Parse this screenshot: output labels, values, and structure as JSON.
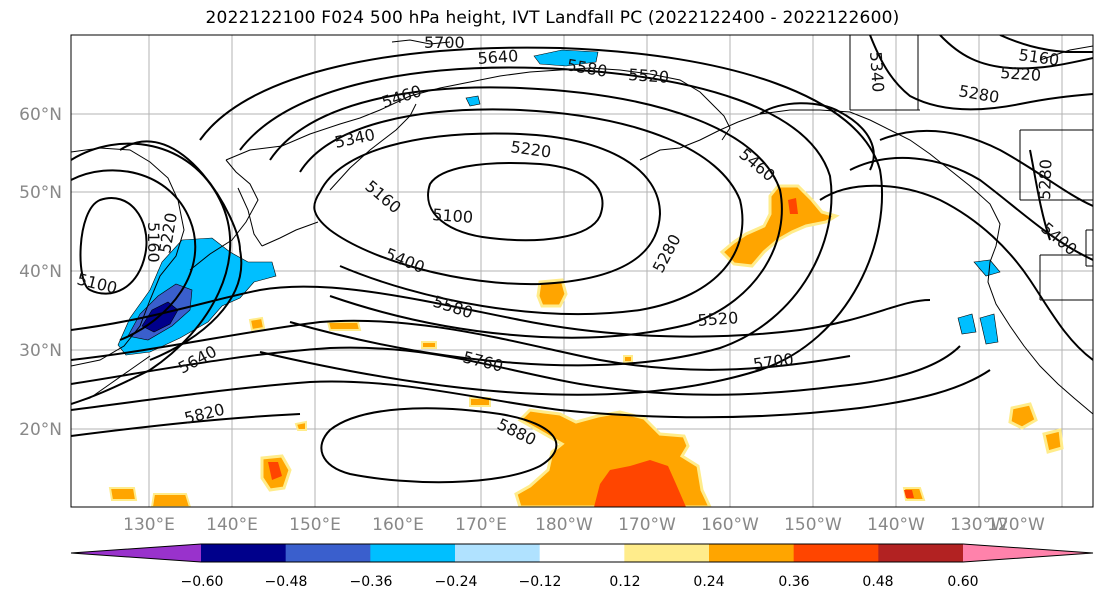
{
  "title": "2022122100 F024 500 hPa height, IVT Landfall PC (2022122400 - 2022122600)",
  "lat_ticks": [
    "60°N",
    "50°N",
    "40°N",
    "30°N",
    "20°N"
  ],
  "lon_ticks": [
    "130°E",
    "140°E",
    "150°E",
    "160°E",
    "170°E",
    "180°W",
    "170°W",
    "160°W",
    "150°W",
    "140°W",
    "130°W",
    "120°W"
  ],
  "contour_labels": [
    "5700",
    "5640",
    "5580",
    "5520",
    "5460",
    "5340",
    "5220",
    "5160",
    "5100",
    "5400",
    "5580",
    "5280",
    "5460",
    "5520",
    "5700",
    "5760",
    "5640",
    "5820",
    "5880",
    "5160",
    "5220",
    "5280",
    "5340",
    "5280",
    "5400",
    "5160",
    "5220",
    "5100"
  ],
  "colorbar": {
    "ticks": [
      "−0.60",
      "−0.48",
      "−0.36",
      "−0.24",
      "−0.12",
      "0.12",
      "0.24",
      "0.36",
      "0.48",
      "0.60"
    ],
    "colors": [
      "#9932CC",
      "#00008B",
      "#3A5FCD",
      "#00BFFF",
      "#B0E2FF",
      "#FFFFFF",
      "#FFEC8B",
      "#FFA500",
      "#FF4500",
      "#B22222",
      "#FF82AB"
    ]
  }
}
